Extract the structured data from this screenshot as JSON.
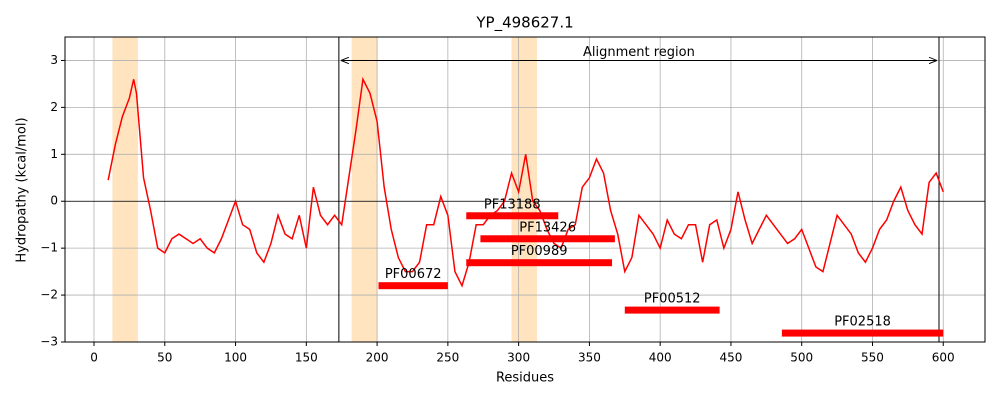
{
  "chart_data": {
    "type": "line",
    "title": "YP_498627.1",
    "xlabel": "Residues",
    "ylabel": "Hydropathy (kcal/mol)",
    "xlim": [
      -20.5,
      629.5
    ],
    "ylim": [
      -3,
      3.5
    ],
    "xticks": [
      0,
      50,
      100,
      150,
      200,
      250,
      300,
      350,
      400,
      450,
      500,
      550,
      600
    ],
    "yticks": [
      {
        "value": -3,
        "label": "−3"
      },
      {
        "value": -2,
        "label": "−2"
      },
      {
        "value": -1,
        "label": "−1"
      },
      0,
      1,
      2,
      3
    ],
    "grid": true,
    "hline": 0,
    "vlines": [
      173,
      597
    ],
    "shaded_regions": [
      [
        13,
        31
      ],
      [
        182,
        200
      ],
      [
        295,
        313
      ]
    ],
    "shade_color": "#ffe4bf",
    "annotation": {
      "text": "Alignment region",
      "x_start": 173,
      "x_end": 597,
      "y": 3
    },
    "x": [
      10,
      15,
      20,
      25,
      28,
      30,
      35,
      40,
      45,
      50,
      55,
      60,
      65,
      70,
      75,
      80,
      85,
      90,
      95,
      100,
      105,
      110,
      115,
      120,
      125,
      130,
      135,
      140,
      145,
      150,
      155,
      160,
      165,
      170,
      175,
      180,
      185,
      190,
      195,
      200,
      205,
      210,
      215,
      220,
      225,
      230,
      235,
      240,
      245,
      250,
      255,
      260,
      265,
      270,
      275,
      280,
      285,
      290,
      295,
      300,
      305,
      310,
      315,
      320,
      325,
      330,
      335,
      340,
      345,
      350,
      355,
      360,
      365,
      370,
      375,
      380,
      385,
      390,
      395,
      400,
      405,
      410,
      415,
      420,
      425,
      430,
      435,
      440,
      445,
      450,
      455,
      460,
      465,
      470,
      475,
      480,
      485,
      490,
      495,
      500,
      505,
      510,
      515,
      520,
      525,
      530,
      535,
      540,
      545,
      550,
      555,
      560,
      565,
      570,
      575,
      580,
      585,
      590,
      595,
      600
    ],
    "series": [
      {
        "color": "#ff0000",
        "values": [
          0.45,
          1.2,
          1.8,
          2.2,
          2.6,
          2.3,
          0.5,
          -0.2,
          -1.0,
          -1.1,
          -0.8,
          -0.7,
          -0.8,
          -0.9,
          -0.8,
          -1.0,
          -1.1,
          -0.8,
          -0.4,
          0.0,
          -0.5,
          -0.6,
          -1.1,
          -1.3,
          -0.9,
          -0.3,
          -0.7,
          -0.8,
          -0.3,
          -1.0,
          0.3,
          -0.3,
          -0.5,
          -0.3,
          -0.5,
          0.5,
          1.5,
          2.6,
          2.3,
          1.7,
          0.3,
          -0.6,
          -1.2,
          -1.5,
          -1.5,
          -1.3,
          -0.5,
          -0.5,
          0.1,
          -0.3,
          -1.5,
          -1.8,
          -1.3,
          -0.5,
          -0.5,
          -0.3,
          -0.2,
          0.0,
          0.6,
          0.2,
          1.0,
          0.0,
          -0.2,
          -0.6,
          -0.9,
          -1.0,
          -0.6,
          -0.5,
          0.3,
          0.5,
          0.9,
          0.6,
          -0.2,
          -0.7,
          -1.5,
          -1.2,
          -0.3,
          -0.5,
          -0.7,
          -1.0,
          -0.4,
          -0.7,
          -0.8,
          -0.5,
          -0.5,
          -1.3,
          -0.5,
          -0.4,
          -1.0,
          -0.6,
          0.2,
          -0.4,
          -0.9,
          -0.6,
          -0.3,
          -0.5,
          -0.7,
          -0.9,
          -0.8,
          -0.6,
          -1.0,
          -1.4,
          -1.5,
          -0.9,
          -0.3,
          -0.5,
          -0.7,
          -1.1,
          -1.3,
          -1.0,
          -0.6,
          -0.4,
          0.0,
          0.3,
          -0.2,
          -0.5,
          -0.7,
          0.4,
          0.6,
          0.2
        ]
      }
    ],
    "domain_color": "#ff0000",
    "domains": [
      {
        "name": "PF13188",
        "start": 263,
        "end": 328,
        "y": -0.31
      },
      {
        "name": "PF13426",
        "start": 273,
        "end": 368,
        "y": -0.8
      },
      {
        "name": "PF00989",
        "start": 263,
        "end": 366,
        "y": -1.31
      },
      {
        "name": "PF00672",
        "start": 201,
        "end": 250,
        "y": -1.8
      },
      {
        "name": "PF00512",
        "start": 375,
        "end": 442,
        "y": -2.32
      },
      {
        "name": "PF02518",
        "start": 486,
        "end": 600,
        "y": -2.81
      }
    ]
  }
}
